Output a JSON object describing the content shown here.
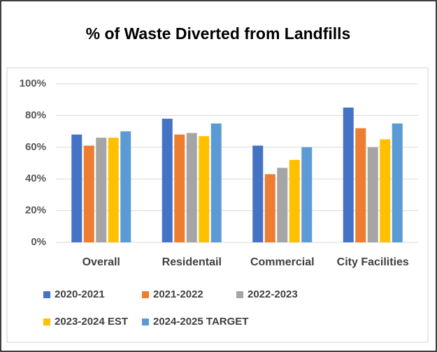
{
  "chart_data": {
    "type": "bar",
    "title": "% of Waste Diverted from Landfills",
    "categories": [
      "Overall",
      "Residentail",
      "Commercial",
      "City Facilities"
    ],
    "series": [
      {
        "name": "2020-2021",
        "color": "#4472c4",
        "values": [
          68,
          78,
          61,
          85
        ]
      },
      {
        "name": "2021-2022",
        "color": "#ed7d31",
        "values": [
          61,
          68,
          43,
          72
        ]
      },
      {
        "name": "2022-2023",
        "color": "#a5a5a5",
        "values": [
          66,
          69,
          47,
          60
        ]
      },
      {
        "name": "2023-2024 EST",
        "color": "#ffc000",
        "values": [
          66,
          67,
          52,
          65
        ]
      },
      {
        "name": "2024-2025 TARGET",
        "color": "#5b9bd5",
        "values": [
          70,
          75,
          60,
          75
        ]
      }
    ],
    "ylim": [
      0,
      100
    ],
    "yticks": [
      {
        "value": 0,
        "label": "0%"
      },
      {
        "value": 20,
        "label": "20%"
      },
      {
        "value": 40,
        "label": "40%"
      },
      {
        "value": 60,
        "label": "60%"
      },
      {
        "value": 80,
        "label": "80%"
      },
      {
        "value": 100,
        "label": "100%"
      }
    ],
    "grid": true,
    "legend": "bottom"
  }
}
